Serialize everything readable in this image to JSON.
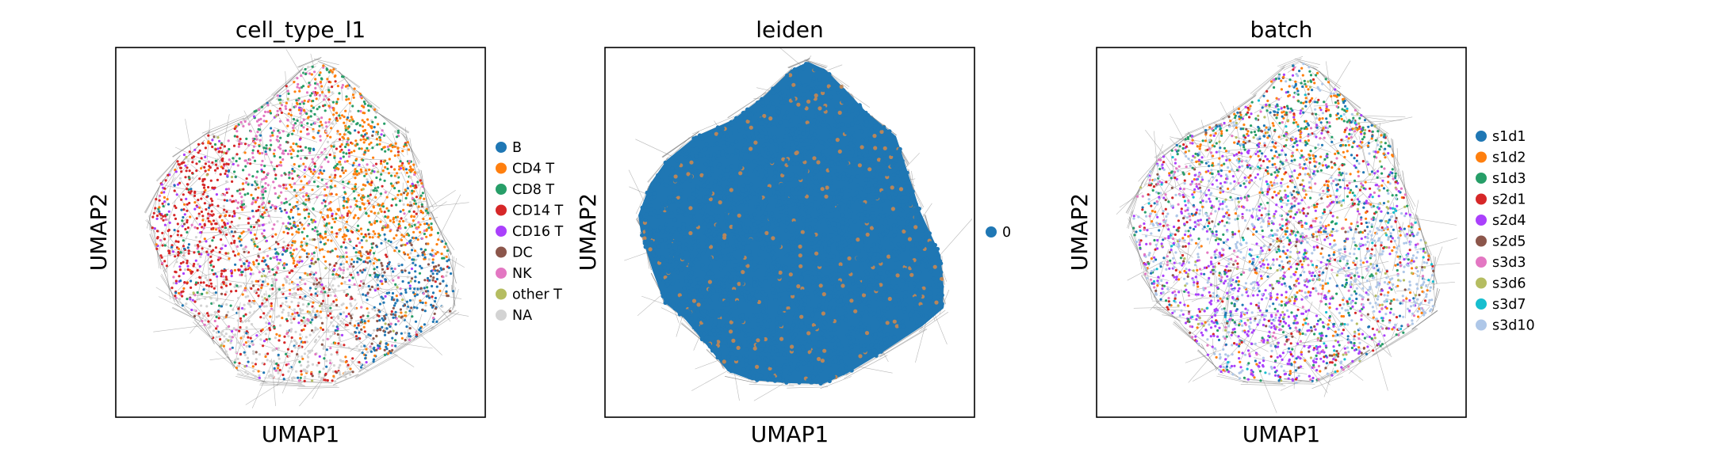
{
  "chart_data": [
    {
      "type": "scatter",
      "title": "cell_type_l1",
      "xlabel": "UMAP1",
      "ylabel": "UMAP2",
      "grid": false,
      "legend_position": "right",
      "legend": [
        {
          "label": "B",
          "color": "#1f77b4"
        },
        {
          "label": "CD4 T",
          "color": "#ff7f0e"
        },
        {
          "label": "CD8 T",
          "color": "#279e68"
        },
        {
          "label": "CD14 T",
          "color": "#d62728"
        },
        {
          "label": "CD16 T",
          "color": "#aa40fc"
        },
        {
          "label": "DC",
          "color": "#8c564b"
        },
        {
          "label": "NK",
          "color": "#e377c2"
        },
        {
          "label": "other T",
          "color": "#b5bd61"
        },
        {
          "label": "NA",
          "color": "#d3d3d3"
        }
      ]
    },
    {
      "type": "scatter",
      "title": "leiden",
      "xlabel": "UMAP1",
      "ylabel": "UMAP2",
      "grid": false,
      "legend_position": "right",
      "legend": [
        {
          "label": "0",
          "color": "#1f77b4"
        }
      ]
    },
    {
      "type": "scatter",
      "title": "batch",
      "xlabel": "UMAP1",
      "ylabel": "UMAP2",
      "grid": false,
      "legend_position": "right",
      "legend": [
        {
          "label": "s1d1",
          "color": "#1f77b4"
        },
        {
          "label": "s1d2",
          "color": "#ff7f0e"
        },
        {
          "label": "s1d3",
          "color": "#279e68"
        },
        {
          "label": "s2d1",
          "color": "#d62728"
        },
        {
          "label": "s2d4",
          "color": "#aa40fc"
        },
        {
          "label": "s2d5",
          "color": "#8c564b"
        },
        {
          "label": "s3d3",
          "color": "#e377c2"
        },
        {
          "label": "s3d6",
          "color": "#b5bd61"
        },
        {
          "label": "s3d7",
          "color": "#17becf"
        },
        {
          "label": "s3d10",
          "color": "#aec7e8"
        }
      ]
    }
  ],
  "colors": {
    "edge": "#808080",
    "frame": "#000000",
    "background": "#ffffff"
  }
}
